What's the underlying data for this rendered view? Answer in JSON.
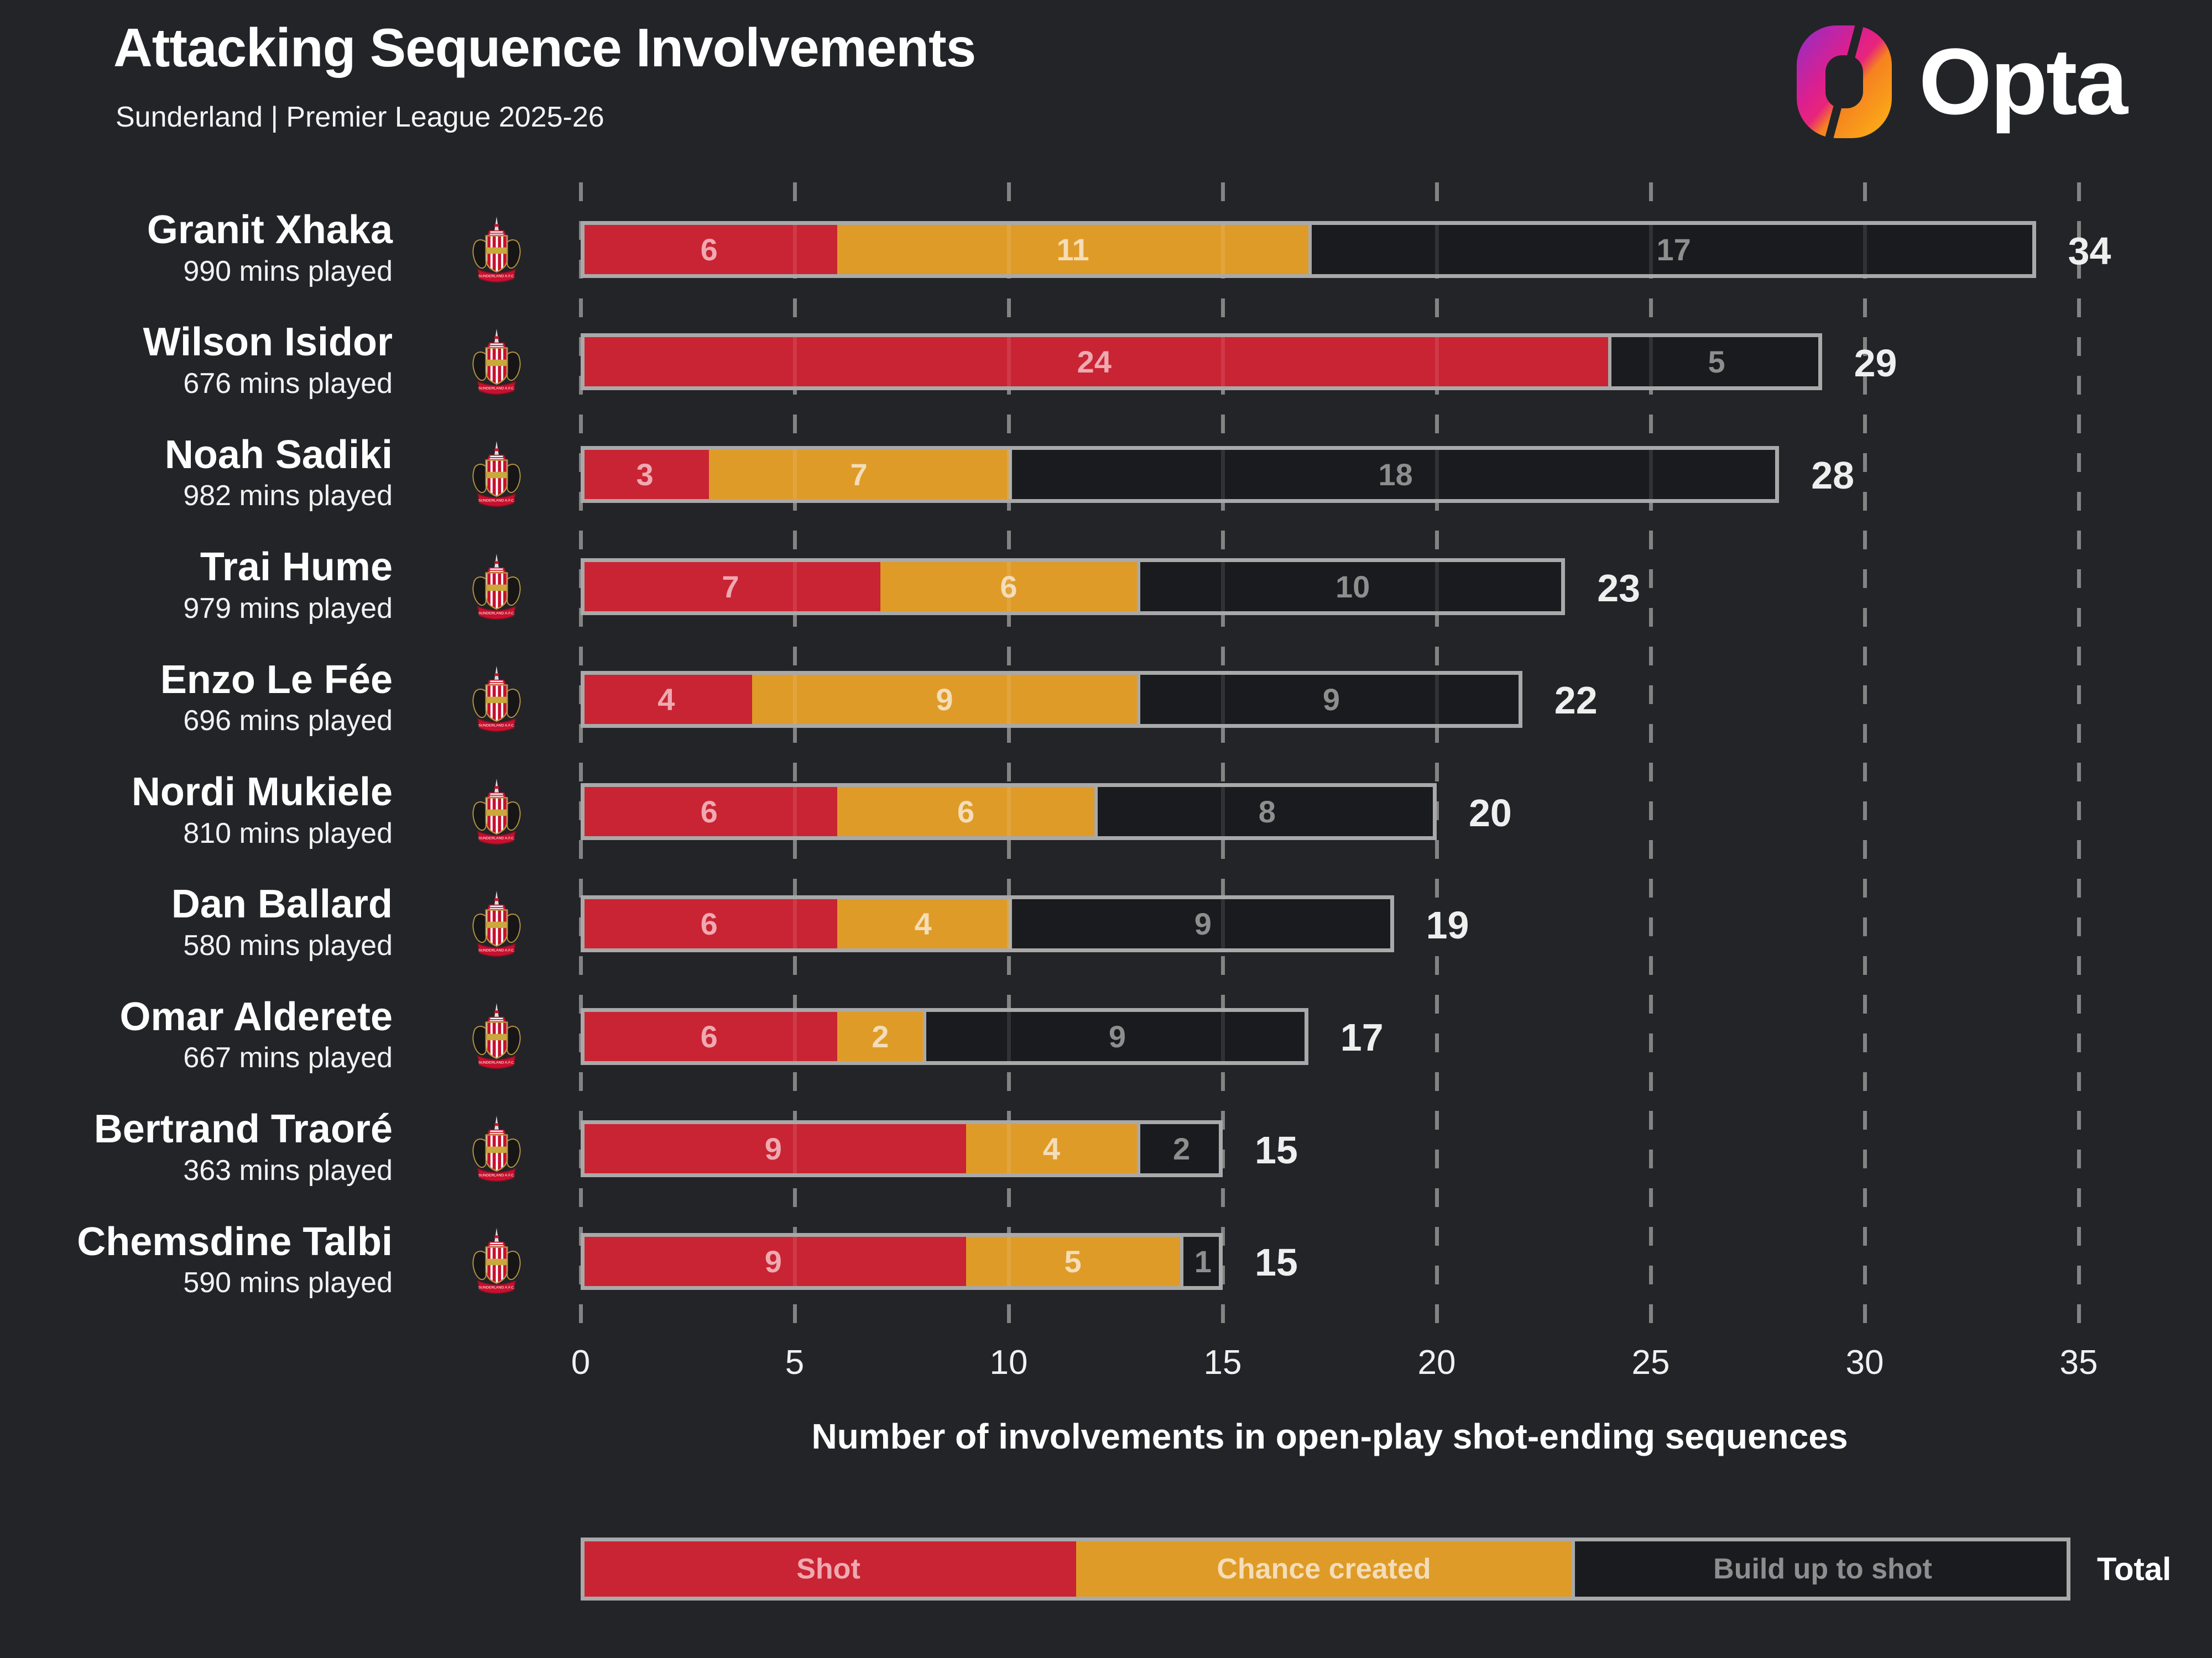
{
  "header": {
    "title": "Attacking Sequence Involvements",
    "subtitle": "Sunderland | Premier League 2025-26",
    "logo_text": "Opta",
    "logo_icon": "opta-o-mark"
  },
  "colors": {
    "background": "#232428",
    "shot": "#C92433",
    "chance_created": "#DF9B28",
    "build_up_fill": "#1A1B1E",
    "bar_outline": "#A9A9A9",
    "gridline": "#838383",
    "label_on_shot": "#EFA9B1",
    "label_on_chance": "#F4DDB8",
    "label_on_build": "#8E8E8E",
    "total_text": "#EFEFEF"
  },
  "badge": {
    "icon": "sunderland-afc-crest",
    "scroll_text": "SUNDERLAND A.F.C."
  },
  "chart_data": {
    "type": "bar",
    "orientation": "horizontal",
    "stacked": true,
    "title": "Attacking Sequence Involvements",
    "subtitle": "Sunderland | Premier League 2025-26",
    "xlabel": "Number of involvements in open-play shot-ending sequences",
    "xlim": [
      0,
      35
    ],
    "x_ticks": [
      0,
      5,
      10,
      15,
      20,
      25,
      30,
      35
    ],
    "gridlines": "dashed-vertical",
    "legend_position": "bottom",
    "series_order": [
      "shot",
      "chance_created",
      "build_up_to_shot"
    ],
    "legend_labels": {
      "shot": "Shot",
      "chance_created": "Chance created",
      "build_up": "Build up to shot",
      "total": "Total"
    },
    "players": [
      {
        "name": "Granit Xhaka",
        "mins_played": "990 mins played",
        "shot": 6,
        "chance_created": 11,
        "build_up_to_shot": 17,
        "total": 34
      },
      {
        "name": "Wilson Isidor",
        "mins_played": "676 mins played",
        "shot": 24,
        "chance_created": 0,
        "build_up_to_shot": 5,
        "total": 29
      },
      {
        "name": "Noah Sadiki",
        "mins_played": "982 mins played",
        "shot": 3,
        "chance_created": 7,
        "build_up_to_shot": 18,
        "total": 28
      },
      {
        "name": "Trai Hume",
        "mins_played": "979 mins played",
        "shot": 7,
        "chance_created": 6,
        "build_up_to_shot": 10,
        "total": 23
      },
      {
        "name": "Enzo Le Fée",
        "mins_played": "696 mins played",
        "shot": 4,
        "chance_created": 9,
        "build_up_to_shot": 9,
        "total": 22
      },
      {
        "name": "Nordi Mukiele",
        "mins_played": "810 mins played",
        "shot": 6,
        "chance_created": 6,
        "build_up_to_shot": 8,
        "total": 20
      },
      {
        "name": "Dan Ballard",
        "mins_played": "580 mins played",
        "shot": 6,
        "chance_created": 4,
        "build_up_to_shot": 9,
        "total": 19
      },
      {
        "name": "Omar Alderete",
        "mins_played": "667 mins played",
        "shot": 6,
        "chance_created": 2,
        "build_up_to_shot": 9,
        "total": 17
      },
      {
        "name": "Bertrand Traoré",
        "mins_played": "363 mins played",
        "shot": 9,
        "chance_created": 4,
        "build_up_to_shot": 2,
        "total": 15
      },
      {
        "name": "Chemsdine Talbi",
        "mins_played": "590 mins played",
        "shot": 9,
        "chance_created": 5,
        "build_up_to_shot": 1,
        "total": 15
      }
    ]
  }
}
